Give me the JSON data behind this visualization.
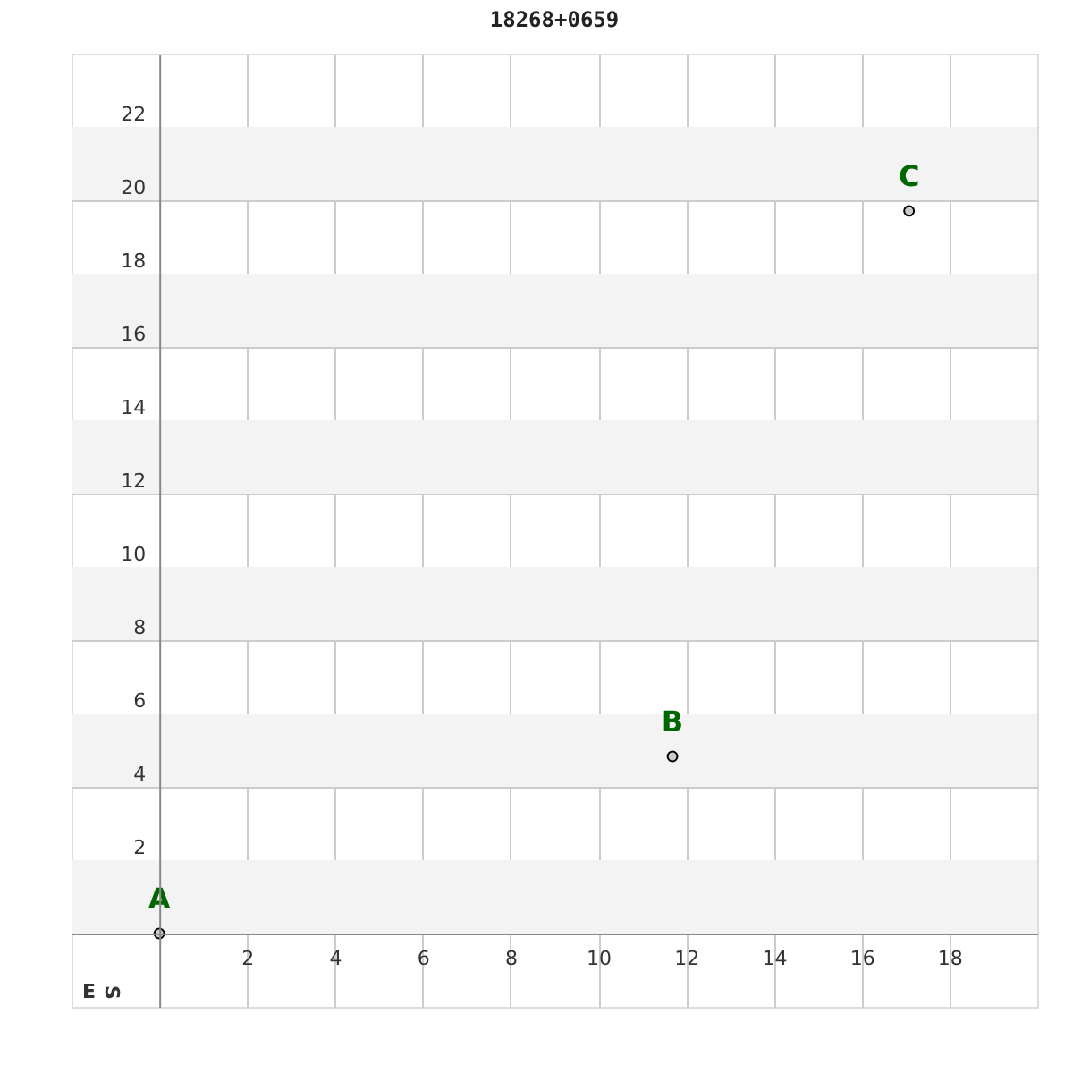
{
  "chart_data": {
    "type": "scatter",
    "title": "18268+0659",
    "series": [
      {
        "x": [
          0,
          11.69,
          17.08
        ],
        "values": [
          0,
          4.83,
          19.71
        ],
        "color": "#cccccc"
      }
    ],
    "xlim": [
      -2,
      20
    ],
    "ylim": [
      -2,
      24
    ],
    "xticks": [
      2,
      4,
      6,
      8,
      10,
      12,
      14,
      16,
      18
    ],
    "yticks": [
      2,
      4,
      6,
      8,
      10,
      12,
      14,
      16,
      18,
      20,
      22
    ],
    "grid": true,
    "marker": "circle",
    "bands": [
      {
        "axis": "y",
        "from": 0,
        "to": 2,
        "color": "#f3f3f3"
      },
      {
        "axis": "y",
        "from": 4,
        "to": 6,
        "color": "#f3f3f3"
      },
      {
        "axis": "y",
        "from": 8,
        "to": 10,
        "color": "#f3f3f3"
      },
      {
        "axis": "y",
        "from": 12,
        "to": 14,
        "color": "#f3f3f3"
      },
      {
        "axis": "y",
        "from": 16,
        "to": 18,
        "color": "#f3f3f3"
      },
      {
        "axis": "y",
        "from": 20,
        "to": 22,
        "color": "#f3f3f3"
      }
    ],
    "annotations": [
      {
        "text": "A",
        "x": 0,
        "y": 0
      },
      {
        "text": "B",
        "x": 11.69,
        "y": 4.83
      },
      {
        "text": "C",
        "x": 17.08,
        "y": 19.71
      },
      "E",
      "S"
    ]
  }
}
